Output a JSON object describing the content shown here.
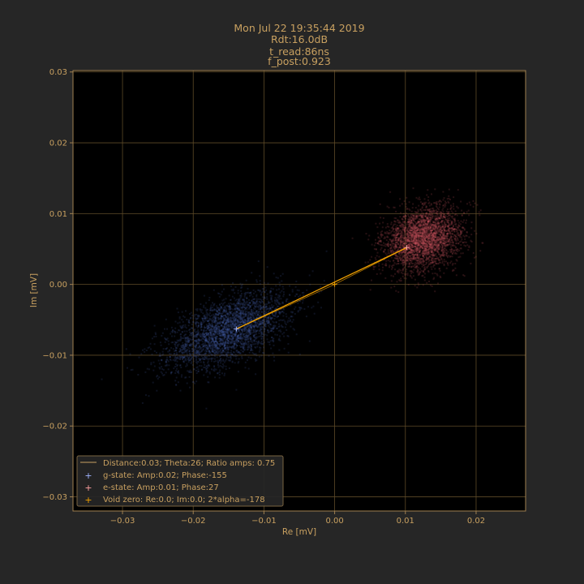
{
  "colors": {
    "figure_bg": "#262626",
    "axes_bg": "#000000",
    "text": "#c8a060",
    "grid": "#5e4a28",
    "spine": "#a08050",
    "g_state": "#4a64b4",
    "e_state": "#d25a64",
    "g_marker": "#a0b4ff",
    "e_marker": "#ffa0a0",
    "line": "#f0a000"
  },
  "chart_data": {
    "type": "scatter",
    "title_lines": [
      "Mon Jul 22 19:35:44 2019",
      "Rdt:16.0dB",
      "t_read:86ns",
      "f_post:0.923"
    ],
    "xlabel": "Re [mV]",
    "ylabel": "Im [mV]",
    "xlim": [
      -0.037,
      0.027
    ],
    "ylim": [
      -0.032,
      0.0302
    ],
    "xticks": [
      -0.03,
      -0.02,
      -0.01,
      0.0,
      0.01,
      0.02
    ],
    "xtick_labels": [
      "−0.03",
      "−0.02",
      "−0.01",
      "0.00",
      "0.01",
      "0.02"
    ],
    "yticks": [
      -0.03,
      -0.02,
      -0.01,
      0.0,
      0.01,
      0.02,
      0.03
    ],
    "ytick_labels": [
      "−0.03",
      "−0.02",
      "−0.01",
      "0.00",
      "0.01",
      "0.02",
      "0.03"
    ],
    "grid": true,
    "legend_position": "lower-left",
    "clouds": [
      {
        "name": "g-state",
        "center": [
          -0.015,
          -0.0065
        ],
        "spread_major": 0.0095,
        "spread_minor": 0.0021,
        "angle_deg": 24
      },
      {
        "name": "e-state",
        "center": [
          0.0125,
          0.0065
        ],
        "spread_major": 0.0055,
        "spread_minor": 0.0021,
        "angle_deg": 27
      }
    ],
    "points": {
      "g_state": [
        -0.0139,
        -0.0063
      ],
      "e_state": [
        0.0102,
        0.0052
      ],
      "void_zero": [
        0.0,
        0.0
      ]
    },
    "distance_line": {
      "from": [
        -0.0139,
        -0.0063
      ],
      "to": [
        0.0102,
        0.0052
      ]
    },
    "legend": [
      {
        "marker": "line",
        "label": "Distance:0.03; Theta:26; Ratio amps: 0.75"
      },
      {
        "marker": "g",
        "label": "g-state: Amp:0.02; Phase:-155"
      },
      {
        "marker": "e",
        "label": "e-state: Amp:0.01; Phase:27"
      },
      {
        "marker": "void",
        "label": "Void zero: Re:0.0; Im:0.0; 2*alpha=-178"
      }
    ]
  }
}
